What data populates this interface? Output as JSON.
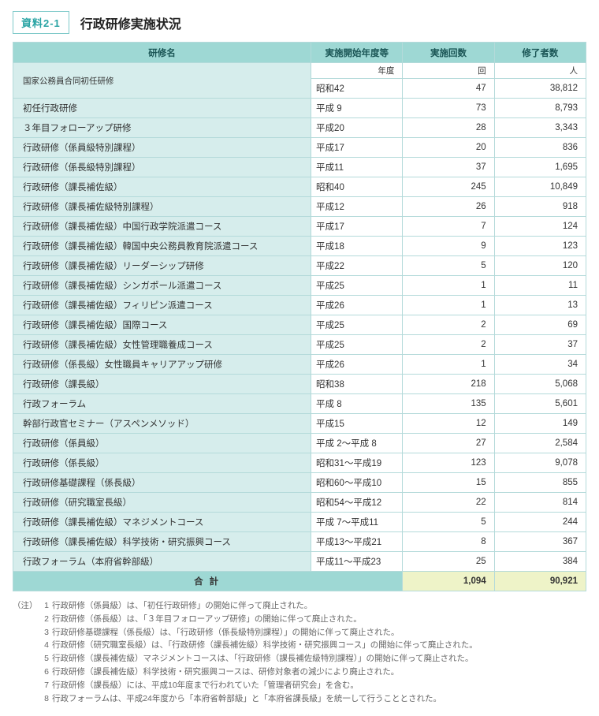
{
  "badge": "資料2-1",
  "title": "行政研修実施状況",
  "columns": [
    "研修名",
    "実施開始年度等",
    "実施回数",
    "修了者数"
  ],
  "units": {
    "start": "年度",
    "count": "回",
    "grad": "人"
  },
  "first_row": {
    "name": "国家公務員合同初任研修",
    "start": "昭和42",
    "count": "47",
    "grad": "38,812"
  },
  "rows": [
    {
      "name": "初任行政研修",
      "start": "平成 9",
      "count": "73",
      "grad": "8,793"
    },
    {
      "name": "３年目フォローアップ研修",
      "start": "平成20",
      "count": "28",
      "grad": "3,343"
    },
    {
      "name": "行政研修（係員級特別課程）",
      "start": "平成17",
      "count": "20",
      "grad": "836"
    },
    {
      "name": "行政研修（係長級特別課程）",
      "start": "平成11",
      "count": "37",
      "grad": "1,695"
    },
    {
      "name": "行政研修（課長補佐級）",
      "start": "昭和40",
      "count": "245",
      "grad": "10,849"
    },
    {
      "name": "行政研修（課長補佐級特別課程）",
      "start": "平成12",
      "count": "26",
      "grad": "918"
    },
    {
      "name": "行政研修（課長補佐級）中国行政学院派遣コース",
      "start": "平成17",
      "count": "7",
      "grad": "124"
    },
    {
      "name": "行政研修（課長補佐級）韓国中央公務員教育院派遣コース",
      "start": "平成18",
      "count": "9",
      "grad": "123"
    },
    {
      "name": "行政研修（課長補佐級）リーダーシップ研修",
      "start": "平成22",
      "count": "5",
      "grad": "120"
    },
    {
      "name": "行政研修（課長補佐級）シンガポール派遣コース",
      "start": "平成25",
      "count": "1",
      "grad": "11"
    },
    {
      "name": "行政研修（課長補佐級）フィリピン派遣コース",
      "start": "平成26",
      "count": "1",
      "grad": "13"
    },
    {
      "name": "行政研修（課長補佐級）国際コース",
      "start": "平成25",
      "count": "2",
      "grad": "69"
    },
    {
      "name": "行政研修（課長補佐級）女性管理職養成コース",
      "start": "平成25",
      "count": "2",
      "grad": "37"
    },
    {
      "name": "行政研修（係長級）女性職員キャリアアップ研修",
      "start": "平成26",
      "count": "1",
      "grad": "34"
    },
    {
      "name": "行政研修（課長級）",
      "start": "昭和38",
      "count": "218",
      "grad": "5,068"
    },
    {
      "name": "行政フォーラム",
      "start": "平成  8",
      "count": "135",
      "grad": "5,601"
    },
    {
      "name": "幹部行政官セミナー（アスペンメソッド）",
      "start": "平成15",
      "count": "12",
      "grad": "149"
    },
    {
      "name": "行政研修（係員級）",
      "start": "平成  2～平成  8",
      "count": "27",
      "grad": "2,584"
    },
    {
      "name": "行政研修（係長級）",
      "start": "昭和31～平成19",
      "count": "123",
      "grad": "9,078"
    },
    {
      "name": "行政研修基礎課程（係長級）",
      "start": "昭和60～平成10",
      "count": "15",
      "grad": "855"
    },
    {
      "name": "行政研修（研究職室長級）",
      "start": "昭和54～平成12",
      "count": "22",
      "grad": "814"
    },
    {
      "name": "行政研修（課長補佐級）マネジメントコース",
      "start": "平成  7～平成11",
      "count": "5",
      "grad": "244"
    },
    {
      "name": "行政研修（課長補佐級）科学技術・研究振興コース",
      "start": "平成13～平成21",
      "count": "8",
      "grad": "367"
    },
    {
      "name": "行政フォーラム（本府省幹部級）",
      "start": "平成11～平成23",
      "count": "25",
      "grad": "384"
    }
  ],
  "total": {
    "label": "合計",
    "count": "1,094",
    "grad": "90,921"
  },
  "notes_label": "（注）",
  "notes": [
    "行政研修（係員級）は、「初任行政研修」の開始に伴って廃止された。",
    "行政研修（係長級）は、「３年目フォローアップ研修」の開始に伴って廃止された。",
    "行政研修基礎課程（係長級）は、「行政研修（係長級特別課程）」の開始に伴って廃止された。",
    "行政研修（研究職室長級）は、「行政研修（課長補佐級）科学技術・研究振興コース」の開始に伴って廃止された。",
    "行政研修（課長補佐級）マネジメントコースは、「行政研修（課長補佐級特別課程）」の開始に伴って廃止された。",
    "行政研修（課長補佐級）科学技術・研究振興コースは、研修対象者の減少により廃止された。",
    "行政研修（課長級）には、平成10年度まで行われていた「管理者研究会」を含む。",
    "行政フォーラムは、平成24年度から「本府省幹部級」と「本府省課長級」を統一して行うこととされた。"
  ],
  "styling": {
    "header_bg": "#9ed8d4",
    "name_cell_bg": "#d6edec",
    "total_bg": "#eef3c8",
    "border_color": "#b4dada",
    "badge_border": "#7fc9c9",
    "badge_text": "#2aa4a4",
    "body_font_size": 12,
    "cell_font_size": 11.5,
    "title_font_size": 16,
    "notes_font_size": 10.5
  }
}
